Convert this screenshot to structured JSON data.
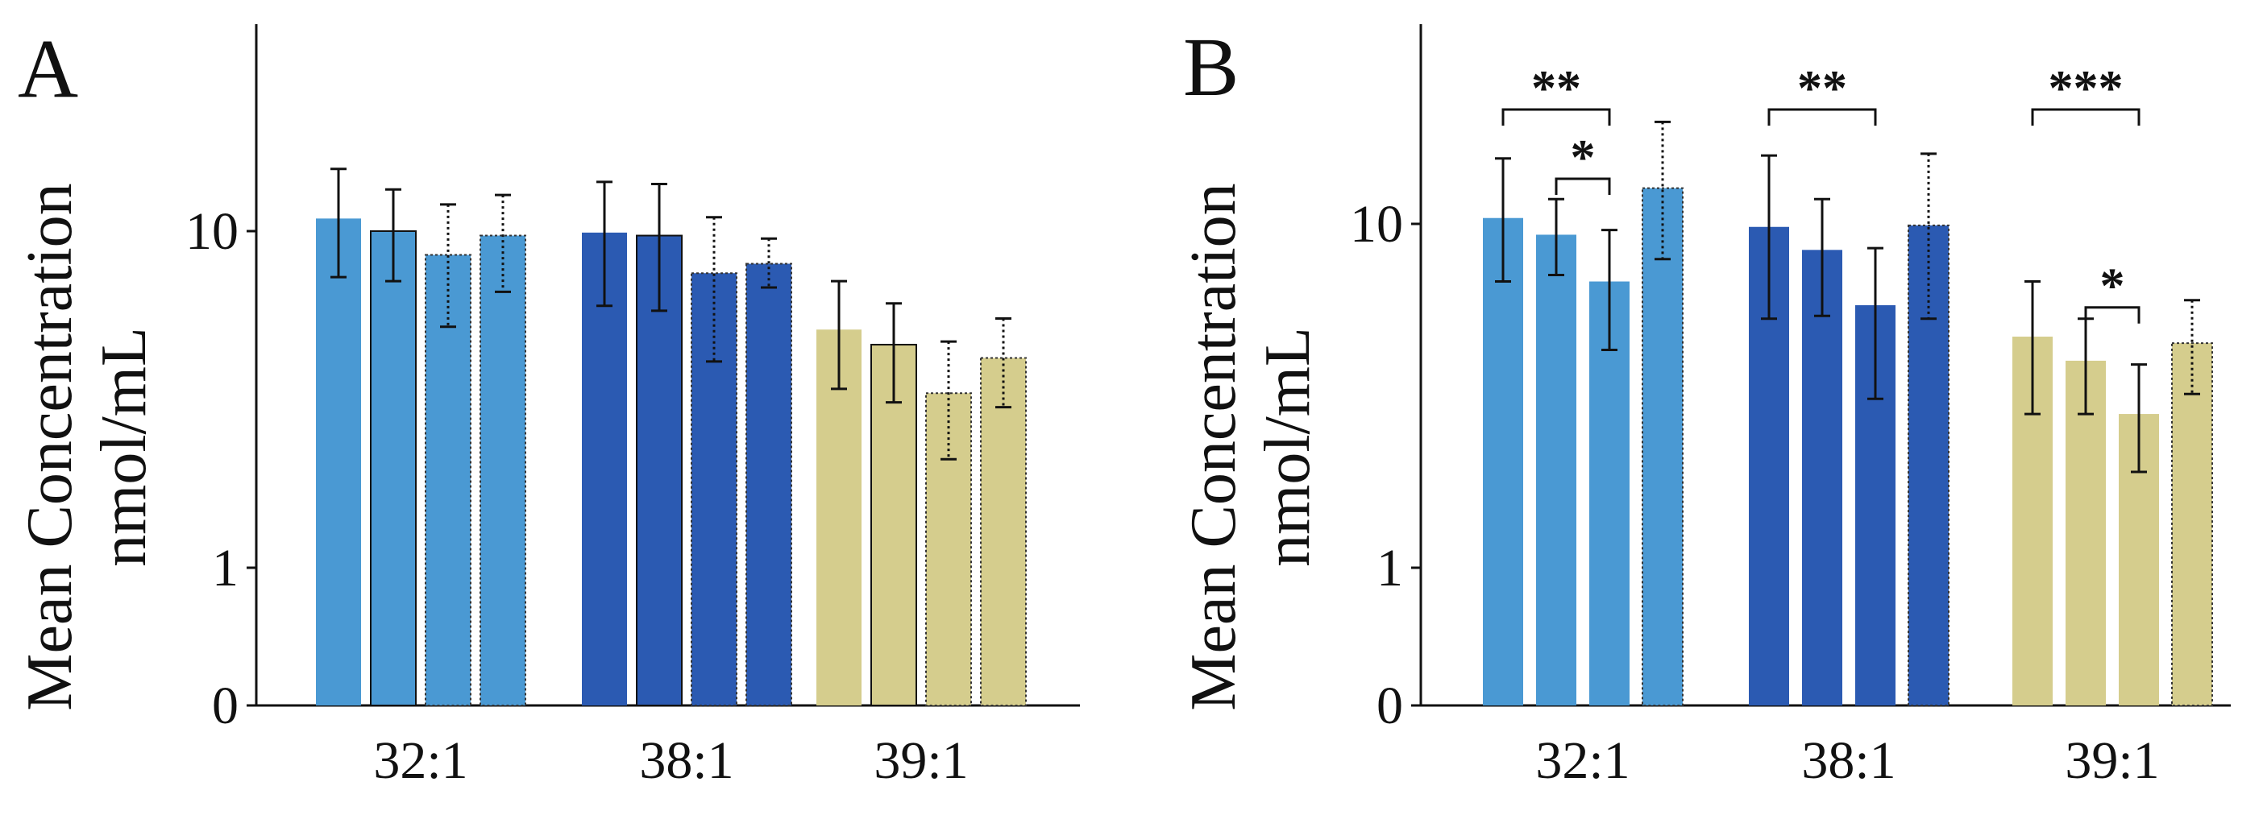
{
  "chart_data": [
    {
      "type": "bar",
      "panel": "A",
      "title": "",
      "xlabel": "",
      "ylabel": [
        "Mean Concentration",
        "nmol/mL"
      ],
      "yscale": "log",
      "yticks": [
        {
          "label": "0",
          "value": 0
        },
        {
          "label": "1",
          "value": 1
        },
        {
          "label": "10",
          "value": 10
        }
      ],
      "ylim": [
        0,
        40
      ],
      "categories": [
        "32:1",
        "38:1",
        "39:1"
      ],
      "colors": [
        "#4a99d3",
        "#2b5ab2",
        "#d5cd8d"
      ],
      "series": [
        {
          "name": "bar1",
          "outline": "none",
          "values": [
            10.9,
            9.9,
            5.1
          ],
          "err_low": [
            7.3,
            6.0,
            3.4
          ],
          "err_high": [
            15.3,
            14.0,
            7.1
          ]
        },
        {
          "name": "bar2",
          "outline": "solid",
          "values": [
            10.0,
            9.7,
            4.6
          ],
          "err_low": [
            7.1,
            5.8,
            3.1
          ],
          "err_high": [
            13.3,
            13.8,
            6.1
          ]
        },
        {
          "name": "bar3",
          "outline": "dotted",
          "values": [
            8.5,
            7.5,
            3.3
          ],
          "err_low": [
            5.2,
            4.1,
            2.1
          ],
          "err_high": [
            12.0,
            11.0,
            4.7
          ]
        },
        {
          "name": "bar4",
          "outline": "dotted",
          "values": [
            9.7,
            8.0,
            4.2
          ],
          "err_low": [
            6.6,
            6.8,
            3.0
          ],
          "err_high": [
            12.8,
            9.5,
            5.5
          ]
        }
      ],
      "significance": []
    },
    {
      "type": "bar",
      "panel": "B",
      "title": "",
      "xlabel": "",
      "ylabel": [
        "Mean Concentration",
        "nmol/mL"
      ],
      "yscale": "log",
      "yticks": [
        {
          "label": "0",
          "value": 0
        },
        {
          "label": "1",
          "value": 1
        },
        {
          "label": "10",
          "value": 10
        }
      ],
      "ylim": [
        0,
        40
      ],
      "categories": [
        "32:1",
        "38:1",
        "39:1"
      ],
      "colors": [
        "#4a99d3",
        "#2b5ab2",
        "#d5cd8d"
      ],
      "series": [
        {
          "name": "bar1",
          "outline": "none",
          "values": [
            10.4,
            9.8,
            4.7
          ],
          "err_low": [
            6.8,
            5.3,
            2.8
          ],
          "err_high": [
            15.5,
            15.8,
            6.8
          ]
        },
        {
          "name": "bar2",
          "outline": "none",
          "values": [
            9.3,
            8.4,
            4.0
          ],
          "err_low": [
            7.1,
            5.4,
            2.8
          ],
          "err_high": [
            11.8,
            11.8,
            5.3
          ]
        },
        {
          "name": "bar3",
          "outline": "none",
          "values": [
            6.8,
            5.8,
            2.8
          ],
          "err_low": [
            4.3,
            3.1,
            1.9
          ],
          "err_high": [
            9.6,
            8.5,
            3.9
          ]
        },
        {
          "name": "bar4",
          "outline": "dotted",
          "values": [
            12.7,
            9.9,
            4.5
          ],
          "err_low": [
            7.9,
            5.3,
            3.2
          ],
          "err_high": [
            19.8,
            16.0,
            6.0
          ]
        }
      ],
      "significance": [
        {
          "group": 0,
          "from": 0,
          "to": 2,
          "label": "**",
          "level": 2
        },
        {
          "group": 0,
          "from": 1,
          "to": 2,
          "label": "*",
          "level": 1
        },
        {
          "group": 1,
          "from": 0,
          "to": 2,
          "label": "**",
          "level": 2
        },
        {
          "group": 2,
          "from": 0,
          "to": 2,
          "label": "***",
          "level": 2
        },
        {
          "group": 2,
          "from": 1,
          "to": 2,
          "label": "*",
          "level": 1
        }
      ]
    }
  ]
}
